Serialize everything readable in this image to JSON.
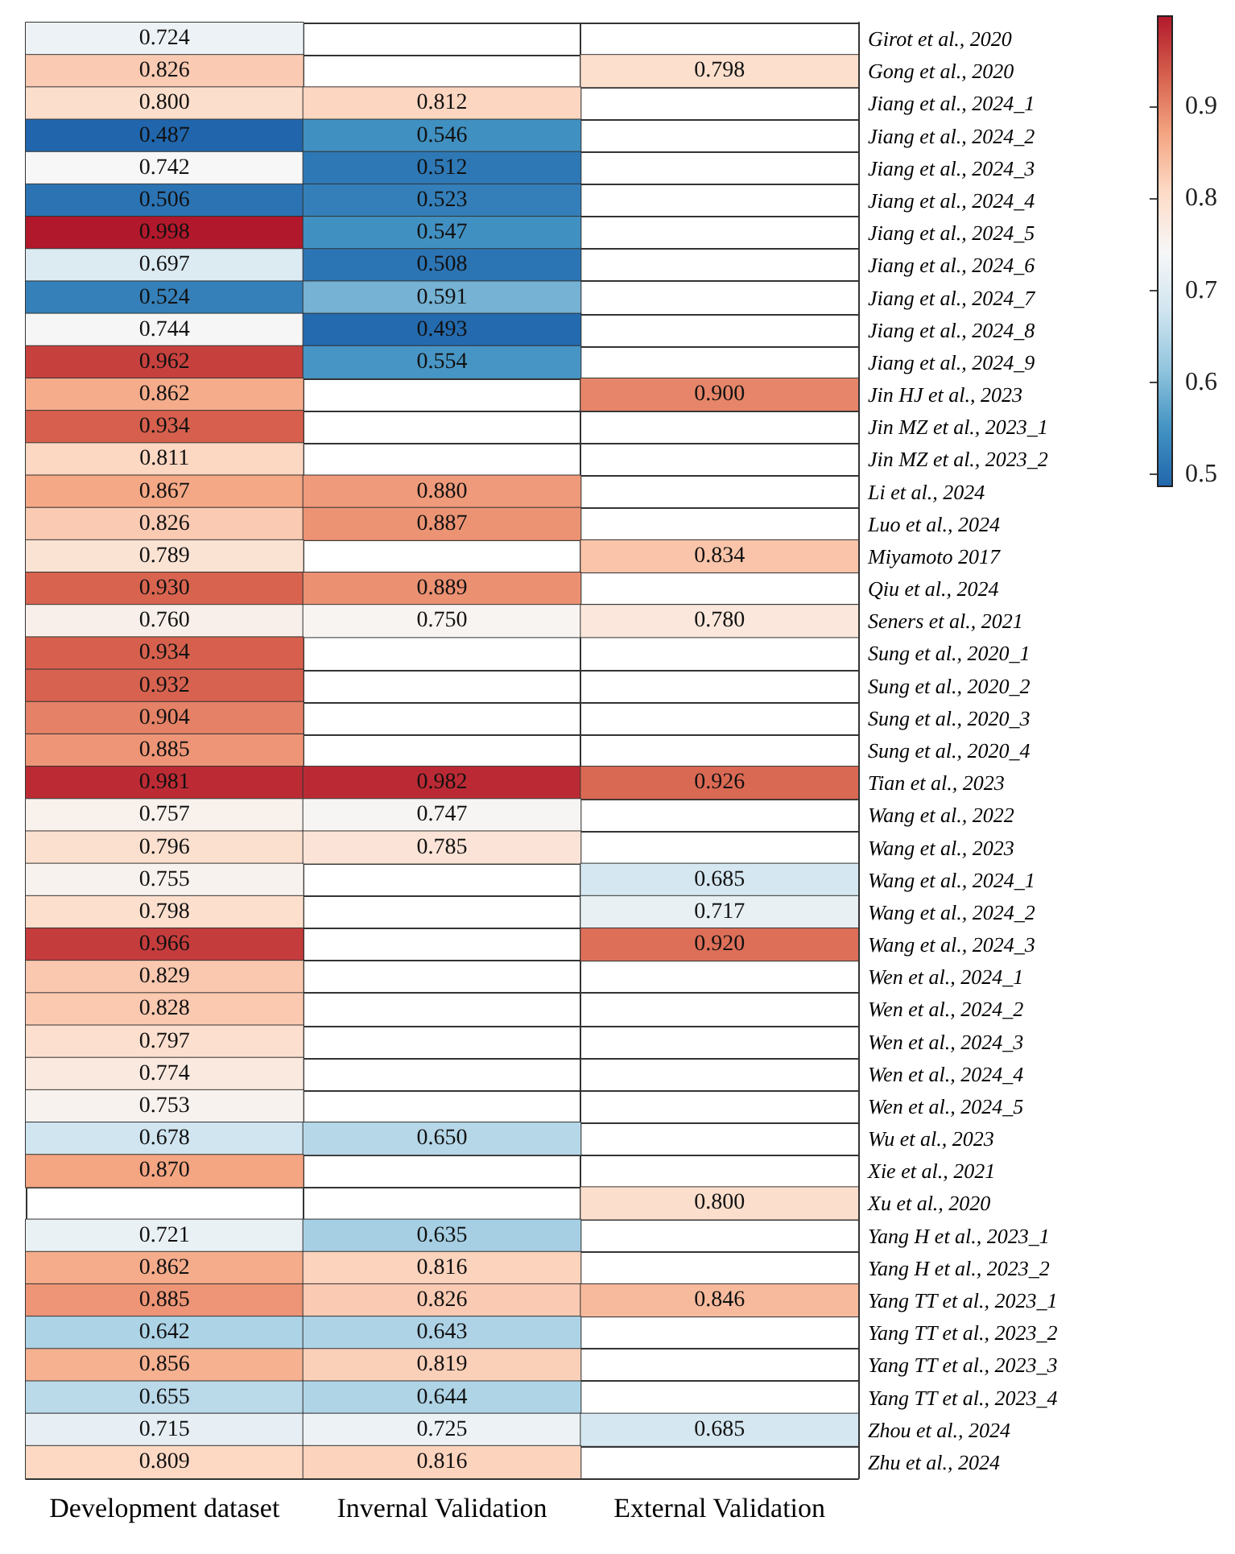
{
  "chart_data": {
    "type": "heatmap",
    "categories": [
      "Development dataset",
      "Invernal Validation",
      "External Validation"
    ],
    "y_categories": [
      "Girot et al., 2020",
      "Gong et al., 2020",
      "Jiang et al., 2024_1",
      "Jiang et al., 2024_2",
      "Jiang et al., 2024_3",
      "Jiang et al., 2024_4",
      "Jiang et al., 2024_5",
      "Jiang et al., 2024_6",
      "Jiang et al., 2024_7",
      "Jiang et al., 2024_8",
      "Jiang et al., 2024_9",
      "Jin HJ et al., 2023",
      "Jin MZ et al., 2023_1",
      "Jin MZ et al., 2023_2",
      "Li et al., 2024",
      "Luo et al., 2024",
      "Miyamoto 2017",
      "Qiu et al., 2024",
      "Seners et al., 2021",
      "Sung et al., 2020_1",
      "Sung et al., 2020_2",
      "Sung et al., 2020_3",
      "Sung et al., 2020_4",
      "Tian et al., 2023",
      "Wang et al., 2022",
      "Wang et al., 2023",
      "Wang et al., 2024_1",
      "Wang et al., 2024_2",
      "Wang et al., 2024_3",
      "Wen et al., 2024_1",
      "Wen et al., 2024_2",
      "Wen et al., 2024_3",
      "Wen et al., 2024_4",
      "Wen et al., 2024_5",
      "Wu et al., 2023",
      "Xie et al., 2021",
      "Xu et al., 2020",
      "Yang H et al., 2023_1",
      "Yang H et al., 2023_2",
      "Yang TT et al., 2023_1",
      "Yang TT et al., 2023_2",
      "Yang TT et al., 2023_3",
      "Yang TT et al., 2023_4",
      "Zhou et al., 2024",
      "Zhu et al., 2024"
    ],
    "cells": [
      [
        0.724,
        null,
        null
      ],
      [
        0.826,
        null,
        0.798
      ],
      [
        0.8,
        0.812,
        null
      ],
      [
        0.487,
        0.546,
        null
      ],
      [
        0.742,
        0.512,
        null
      ],
      [
        0.506,
        0.523,
        null
      ],
      [
        0.998,
        0.547,
        null
      ],
      [
        0.697,
        0.508,
        null
      ],
      [
        0.524,
        0.591,
        null
      ],
      [
        0.744,
        0.493,
        null
      ],
      [
        0.962,
        0.554,
        null
      ],
      [
        0.862,
        null,
        0.9
      ],
      [
        0.934,
        null,
        null
      ],
      [
        0.811,
        null,
        null
      ],
      [
        0.867,
        0.88,
        null
      ],
      [
        0.826,
        0.887,
        null
      ],
      [
        0.789,
        null,
        0.834
      ],
      [
        0.93,
        0.889,
        null
      ],
      [
        0.76,
        0.75,
        0.78
      ],
      [
        0.934,
        null,
        null
      ],
      [
        0.932,
        null,
        null
      ],
      [
        0.904,
        null,
        null
      ],
      [
        0.885,
        null,
        null
      ],
      [
        0.981,
        0.982,
        0.926
      ],
      [
        0.757,
        0.747,
        null
      ],
      [
        0.796,
        0.785,
        null
      ],
      [
        0.755,
        null,
        0.685
      ],
      [
        0.798,
        null,
        0.717
      ],
      [
        0.966,
        null,
        0.92
      ],
      [
        0.829,
        null,
        null
      ],
      [
        0.828,
        null,
        null
      ],
      [
        0.797,
        null,
        null
      ],
      [
        0.774,
        null,
        null
      ],
      [
        0.753,
        null,
        null
      ],
      [
        0.678,
        0.65,
        null
      ],
      [
        0.87,
        null,
        null
      ],
      [
        null,
        null,
        0.8
      ],
      [
        0.721,
        0.635,
        null
      ],
      [
        0.862,
        0.816,
        null
      ],
      [
        0.885,
        0.826,
        0.846
      ],
      [
        0.642,
        0.643,
        null
      ],
      [
        0.856,
        0.819,
        null
      ],
      [
        0.655,
        0.644,
        null
      ],
      [
        0.715,
        0.725,
        0.685
      ],
      [
        0.809,
        0.816,
        null
      ]
    ],
    "cell_labels": [
      [
        "0.724",
        null,
        null
      ],
      [
        "0.826",
        null,
        "0.798"
      ],
      [
        "0.800",
        "0.812",
        null
      ],
      [
        "0.487",
        "0.546",
        null
      ],
      [
        "0.742",
        "0.512",
        null
      ],
      [
        "0.506",
        "0.523",
        null
      ],
      [
        "0.998",
        "0.547",
        null
      ],
      [
        "0.697",
        "0.508",
        null
      ],
      [
        "0.524",
        "0.591",
        null
      ],
      [
        "0.744",
        "0.493",
        null
      ],
      [
        "0.962",
        "0.554",
        null
      ],
      [
        "0.862",
        null,
        "0.900"
      ],
      [
        "0.934",
        null,
        null
      ],
      [
        "0.811",
        null,
        null
      ],
      [
        "0.867",
        "0.880",
        null
      ],
      [
        "0.826",
        "0.887",
        null
      ],
      [
        "0.789",
        null,
        "0.834"
      ],
      [
        "0.930",
        "0.889",
        null
      ],
      [
        "0.760",
        "0.750",
        "0.780"
      ],
      [
        "0.934",
        null,
        null
      ],
      [
        "0.932",
        null,
        null
      ],
      [
        "0.904",
        null,
        null
      ],
      [
        "0.885",
        null,
        null
      ],
      [
        "0.981",
        "0.982",
        "0.926"
      ],
      [
        "0.757",
        "0.747",
        null
      ],
      [
        "0.796",
        "0.785",
        null
      ],
      [
        "0.755",
        null,
        "0.685"
      ],
      [
        "0.798",
        null,
        "0.717"
      ],
      [
        "0.966",
        null,
        "0.920"
      ],
      [
        "0.829",
        null,
        null
      ],
      [
        "0.828",
        null,
        null
      ],
      [
        "0.797",
        null,
        null
      ],
      [
        "0.774",
        null,
        null
      ],
      [
        "0.753",
        null,
        null
      ],
      [
        "0.678",
        "0.650",
        null
      ],
      [
        "0.870",
        null,
        null
      ],
      [
        null,
        null,
        "0.800"
      ],
      [
        "0.721",
        "0.635",
        null
      ],
      [
        "0.862",
        "0.816",
        null
      ],
      [
        "0.885",
        "0.826",
        "0.846"
      ],
      [
        "0.642",
        "0.643",
        null
      ],
      [
        "0.856",
        "0.819",
        null
      ],
      [
        "0.655",
        "0.644",
        null
      ],
      [
        "0.715",
        "0.725",
        "0.685"
      ],
      [
        "0.809",
        "0.816",
        null
      ]
    ],
    "clim": [
      0.487,
      0.998
    ],
    "cticks": [
      0.5,
      0.6,
      0.7,
      0.8,
      0.9
    ]
  }
}
